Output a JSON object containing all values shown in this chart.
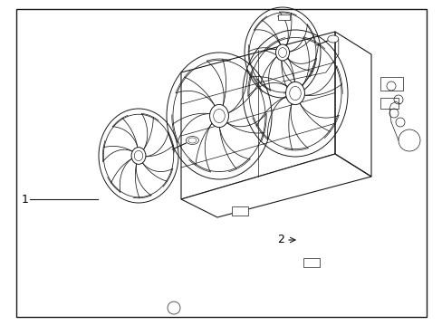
{
  "background_color": "#ffffff",
  "border_color": "#1a1a1a",
  "line_color": "#1a1a1a",
  "label_color": "#000000",
  "fig_width": 4.89,
  "fig_height": 3.6,
  "dpi": 100,
  "label1": "1",
  "label2": "2"
}
